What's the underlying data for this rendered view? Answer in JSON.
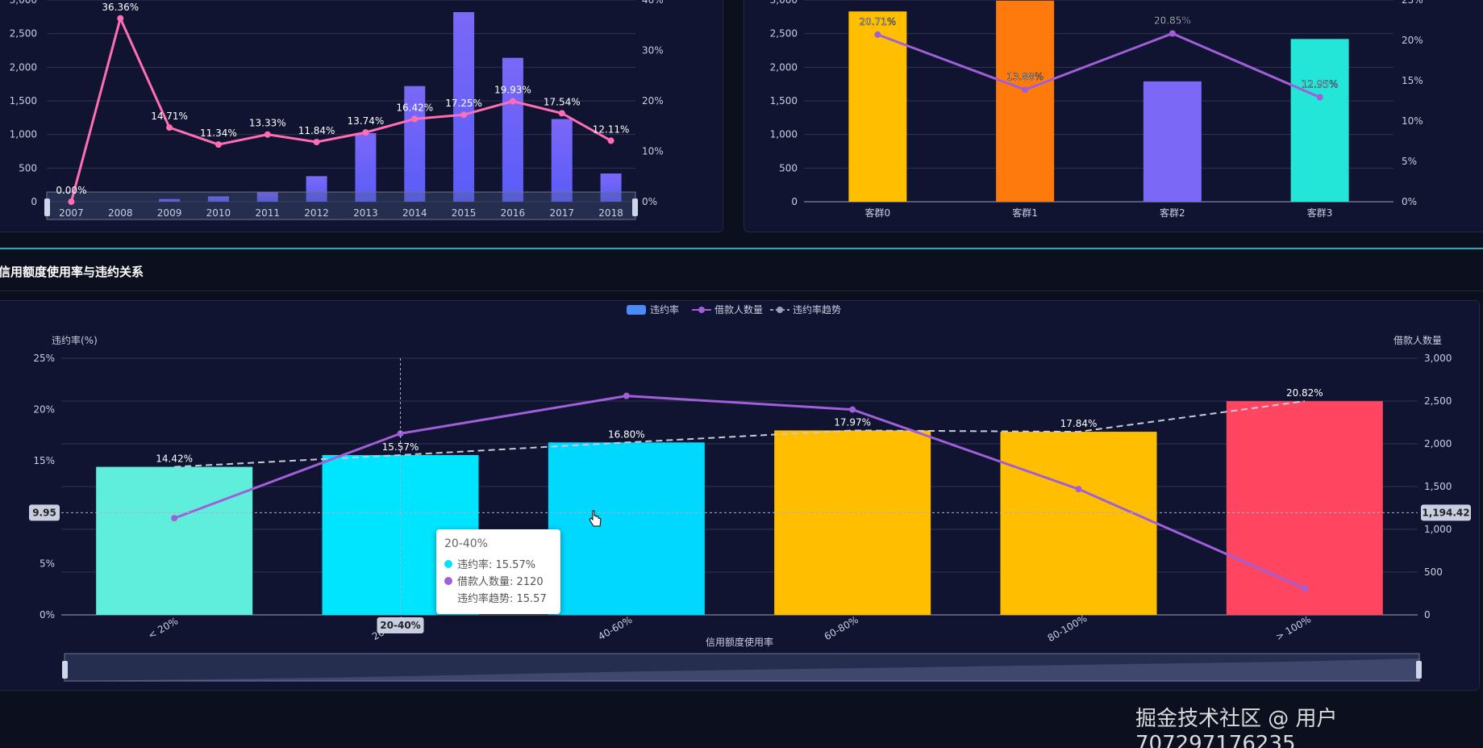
{
  "section_title": "信用额度使用率与违约关系",
  "chart_data": [
    {
      "id": "top-left",
      "type": "bar+line",
      "categories": [
        "2007",
        "2008",
        "2009",
        "2010",
        "2011",
        "2012",
        "2013",
        "2014",
        "2015",
        "2016",
        "2017",
        "2018"
      ],
      "series": [
        {
          "values": [
            0,
            0,
            40,
            80,
            150,
            380,
            1020,
            1720,
            2820,
            2140,
            1230,
            420
          ]
        },
        {
          "values": [
            0.0,
            36.36,
            14.71,
            11.34,
            13.33,
            11.84,
            13.74,
            16.42,
            17.25,
            19.93,
            17.54,
            12.11
          ],
          "labels": [
            "0.00%",
            "36.36%",
            "14.71%",
            "11.34%",
            "13.33%",
            "11.84%",
            "13.74%",
            "16.42%",
            "17.25%",
            "19.93%",
            "17.54%",
            "12.11%"
          ]
        }
      ],
      "y_left_ticks": [
        "0",
        "500",
        "1,000",
        "1,500",
        "2,000",
        "2,500",
        "3,000"
      ],
      "y_right_ticks": [
        "0%",
        "10%",
        "20%",
        "30%",
        "40%"
      ],
      "ylim_left": [
        0,
        3000
      ],
      "ylim_right": [
        0,
        40
      ],
      "colors": {
        "bar_top": "#7b68f7",
        "bar_bottom": "#5a5cf8",
        "line": "#ff6eb4"
      }
    },
    {
      "id": "top-right",
      "type": "bar+line",
      "categories": [
        "客群0",
        "客群1",
        "客群2",
        "客群3"
      ],
      "series": [
        {
          "values": [
            2830,
            2990,
            1790,
            2420
          ],
          "colors": [
            "#ffbf00",
            "#ff7a0c",
            "#7b68f7",
            "#23e6d8"
          ]
        },
        {
          "values": [
            20.71,
            13.88,
            20.85,
            12.95
          ],
          "labels": [
            "20.71%",
            "13.88%",
            "20.85%",
            "12.95%"
          ]
        }
      ],
      "y_left_ticks": [
        "0",
        "500",
        "1,000",
        "1,500",
        "2,000",
        "2,500",
        "3,000"
      ],
      "y_right_ticks": [
        "0%",
        "5%",
        "10%",
        "15%",
        "20%",
        "25%"
      ],
      "ylim_left": [
        0,
        3000
      ],
      "ylim_right": [
        0,
        25
      ],
      "colors": {
        "line": "#a05fd8"
      }
    },
    {
      "id": "bottom",
      "type": "bar+line",
      "title": "信用额度使用率与违约关系",
      "categories": [
        "< 20%",
        "20-40%",
        "40-60%",
        "60-80%",
        "80-100%",
        "> 100%"
      ],
      "xlabel": "信用额度使用率",
      "ylabel_left": "违约率(%)",
      "ylabel_right": "借款人数量",
      "legend": [
        "违约率",
        "借款人数量",
        "违约率趋势"
      ],
      "series": [
        {
          "name": "违约率",
          "values": [
            14.42,
            15.57,
            16.8,
            17.97,
            17.84,
            20.82
          ],
          "labels": [
            "14.42%",
            "15.57%",
            "16.80%",
            "17.97%",
            "17.84%",
            "20.82%"
          ],
          "colors": [
            "#5eeedb",
            "#00e5ff",
            "#00d8ff",
            "#ffbf00",
            "#ffbf00",
            "#ff4560"
          ]
        },
        {
          "name": "借款人数量",
          "values": [
            1130,
            2120,
            2560,
            2400,
            1470,
            310
          ]
        },
        {
          "name": "违约率趋势",
          "values": [
            14.42,
            15.57,
            16.8,
            17.97,
            17.84,
            20.82
          ]
        }
      ],
      "y_left_ticks": [
        "0%",
        "5%",
        "10%",
        "15%",
        "20%",
        "25%"
      ],
      "y_right_ticks": [
        "0",
        "500",
        "1,000",
        "1,500",
        "2,000",
        "2,500",
        "3,000"
      ],
      "ylim_left": [
        0,
        25
      ],
      "ylim_right": [
        0,
        3000
      ],
      "crosshair": {
        "left_value": "9.95",
        "right_value": "1,194.42",
        "x_category": "20-40%"
      },
      "tooltip": {
        "title": "20-40%",
        "rows": [
          {
            "label": "违约率: 15.57%",
            "color": "#00e5ff"
          },
          {
            "label": "借款人数量: 2120",
            "color": "#a05fd8"
          },
          {
            "label": "违约率趋势: 15.57"
          }
        ]
      },
      "colors": {
        "count_line": "#a05fd8",
        "trend_line": "#c8c8d8",
        "legend_bar": "#4a8cf7"
      }
    }
  ],
  "watermark": "掘金技术社区 @ 用户707297176235"
}
